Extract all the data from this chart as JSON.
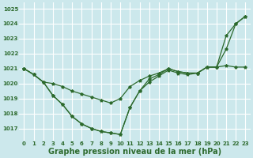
{
  "x": [
    0,
    1,
    2,
    3,
    4,
    5,
    6,
    7,
    8,
    9,
    10,
    11,
    12,
    13,
    14,
    15,
    16,
    17,
    18,
    19,
    20,
    21,
    22,
    23
  ],
  "line1": [
    1021.0,
    1020.6,
    1020.1,
    1020.0,
    1019.8,
    1019.5,
    1019.3,
    1019.1,
    1018.9,
    1018.7,
    1019.0,
    1019.8,
    1020.2,
    1020.5,
    1020.7,
    1021.0,
    1020.8,
    1020.7,
    1020.7,
    1021.1,
    1021.1,
    1021.2,
    1021.1,
    1021.1
  ],
  "line2": [
    1021.0,
    1020.6,
    1020.1,
    1019.2,
    1018.6,
    1017.8,
    1017.3,
    1017.0,
    1016.8,
    1016.7,
    1016.6,
    1018.4,
    1019.5,
    1020.1,
    1020.5,
    1020.9,
    1020.7,
    1020.6,
    1020.7,
    1021.1,
    1021.1,
    1022.3,
    1024.0,
    1024.5
  ],
  "line3": [
    1021.0,
    1020.6,
    1020.1,
    1019.2,
    1018.6,
    1017.8,
    1017.3,
    1017.0,
    1016.8,
    1016.7,
    1016.6,
    1018.4,
    1019.5,
    1020.3,
    1020.6,
    1021.0,
    1020.8,
    1020.7,
    1020.7,
    1021.1,
    1021.1,
    1023.2,
    1024.0,
    1024.5
  ],
  "bg_color": "#cce8ec",
  "grid_color": "#b0d8de",
  "line_color": "#2d6a2d",
  "marker": "*",
  "xlabel": "Graphe pression niveau de la mer (hPa)",
  "ylim": [
    1016.2,
    1025.4
  ],
  "yticks": [
    1017,
    1018,
    1019,
    1020,
    1021,
    1022,
    1023,
    1024,
    1025
  ],
  "xlim": [
    -0.5,
    23.5
  ],
  "xticks": [
    0,
    1,
    2,
    3,
    4,
    5,
    6,
    7,
    8,
    9,
    10,
    11,
    12,
    13,
    14,
    15,
    16,
    17,
    18,
    19,
    20,
    21,
    22,
    23
  ],
  "tick_fontsize": 5.0,
  "xlabel_fontsize": 7.0
}
